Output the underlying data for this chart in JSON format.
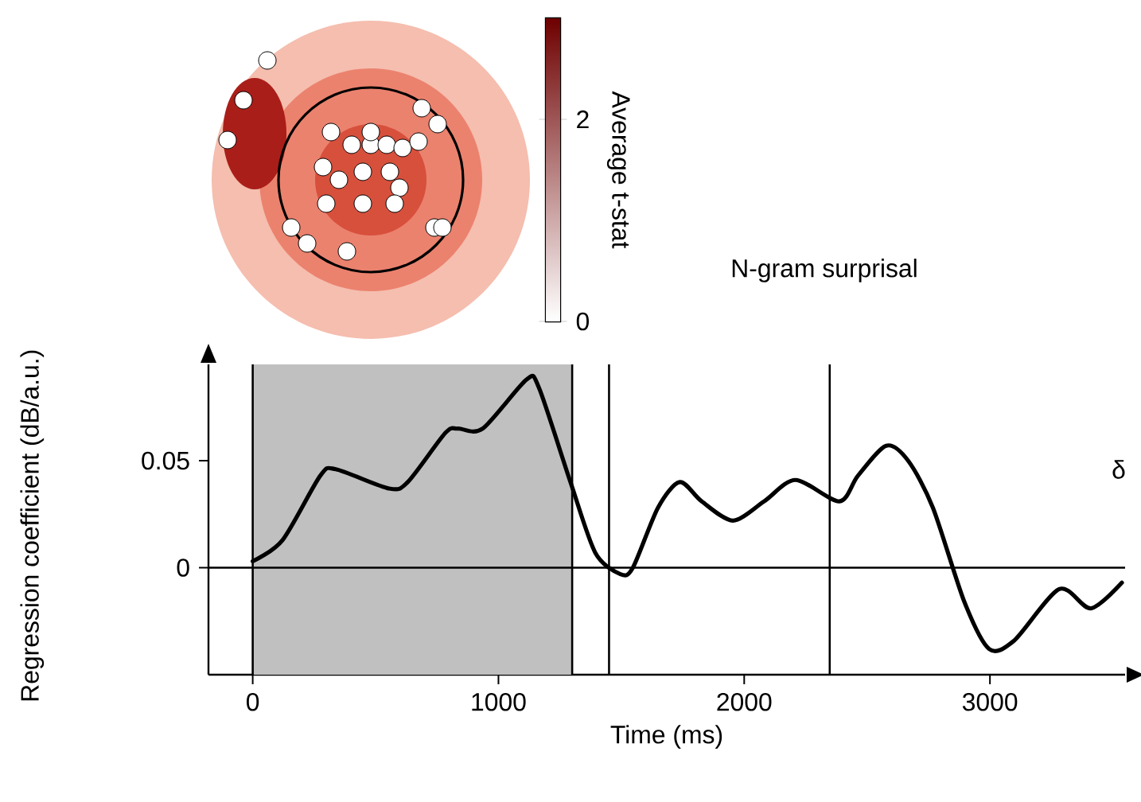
{
  "chart_data": {
    "type": "line",
    "xlabel": "Time (ms)",
    "ylabel": "Regression coefficient (dB/a.u.)",
    "clabel": "Average t-stat",
    "clim": [
      0,
      3
    ],
    "cticks": [
      0,
      2
    ],
    "x": [
      0,
      122,
      275,
      338,
      555,
      631,
      784,
      835,
      936,
      1115,
      1165,
      1293,
      1394,
      1496,
      1547,
      1649,
      1738,
      1827,
      1954,
      2081,
      2209,
      2387,
      2463,
      2578,
      2667,
      2768,
      2896,
      2997,
      3099,
      3282,
      3410,
      3537
    ],
    "series": [
      {
        "color": "#000000",
        "values": [
          0.003,
          0.013,
          0.043,
          0.046,
          0.037,
          0.04,
          0.063,
          0.065,
          0.065,
          0.088,
          0.084,
          0.04,
          0.007,
          -0.003,
          0.0,
          0.028,
          0.04,
          0.031,
          0.022,
          0.031,
          0.041,
          0.031,
          0.043,
          0.057,
          0.05,
          0.028,
          -0.016,
          -0.038,
          -0.034,
          -0.01,
          -0.019,
          -0.007
        ]
      }
    ],
    "xlim": [
      -180,
      3550
    ],
    "ylim": [
      -0.05,
      0.095
    ],
    "xticks": [
      0,
      1000,
      2000,
      3000
    ],
    "yticks": [
      0,
      0.05
    ],
    "ref_lines": [
      {
        "axis": "y",
        "value": 0,
        "color": "#000000"
      },
      {
        "axis": "x",
        "value": 0,
        "color": "#000000"
      },
      {
        "axis": "x",
        "value": 1300,
        "color": "#000000"
      },
      {
        "axis": "x",
        "value": 1450,
        "color": "#000000"
      },
      {
        "axis": "x",
        "value": 2348,
        "color": "#000000"
      }
    ],
    "bands": [
      {
        "axis": "x",
        "from": 0,
        "to": 1300,
        "color": "#c0c0c0"
      }
    ],
    "annotations": [
      "N-gram surprisal",
      "δ"
    ]
  }
}
